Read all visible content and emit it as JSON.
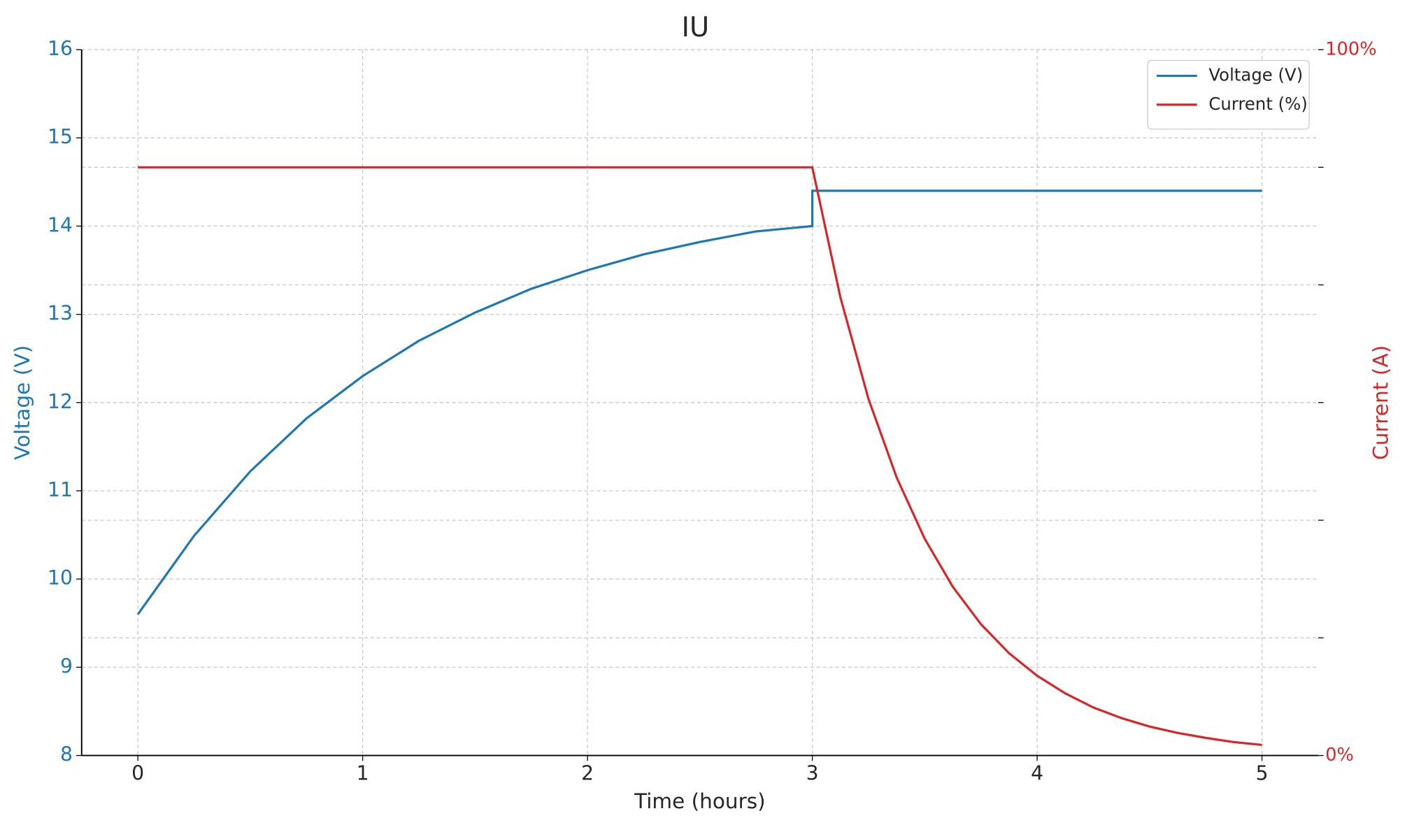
{
  "chart_data": {
    "type": "line",
    "title": "IU",
    "x_label": "Time (hours)",
    "y_label": "Voltage (V)",
    "y2_label": "Current (A)",
    "xlim": [
      -0.25,
      5.25
    ],
    "xticks": [
      0,
      1,
      2,
      3,
      4,
      5
    ],
    "ylim": [
      8,
      16
    ],
    "yticks": [
      8,
      9,
      10,
      11,
      12,
      13,
      14,
      15,
      16
    ],
    "y2lim": [
      0,
      100
    ],
    "y2ticks": [
      {
        "value": 0,
        "label": "0%"
      },
      {
        "value": 100,
        "label": "100%"
      }
    ],
    "y2minor_ticks": [
      16.67,
      33.33,
      50,
      66.67,
      83.33
    ],
    "grid": true,
    "legend": "upper right",
    "y_color": "#1f77b4",
    "y2_color": "#d62728",
    "series": [
      {
        "name": "Voltage (V)",
        "color": "#1f77b4",
        "axis": "y",
        "x": [
          0,
          0.25,
          0.5,
          0.75,
          1,
          1.25,
          1.5,
          1.75,
          2,
          2.25,
          2.5,
          2.75,
          3,
          3,
          5
        ],
        "values": [
          9.6,
          10.49,
          11.22,
          11.82,
          12.3,
          12.7,
          13.02,
          13.29,
          13.5,
          13.68,
          13.82,
          13.94,
          14.0,
          14.4,
          14.4
        ]
      },
      {
        "name": "Current (%)",
        "color": "#d62728",
        "axis": "y2",
        "x": [
          0,
          3,
          3.125,
          3.25,
          3.375,
          3.5,
          3.625,
          3.75,
          3.875,
          4,
          4.125,
          4.25,
          4.375,
          4.5,
          4.625,
          4.75,
          4.875,
          5
        ],
        "values": [
          83.33,
          83.33,
          64.9,
          50.5,
          39.4,
          30.7,
          23.9,
          18.6,
          14.5,
          11.3,
          8.8,
          6.8,
          5.3,
          4.1,
          3.2,
          2.5,
          1.9,
          1.5
        ]
      }
    ]
  }
}
